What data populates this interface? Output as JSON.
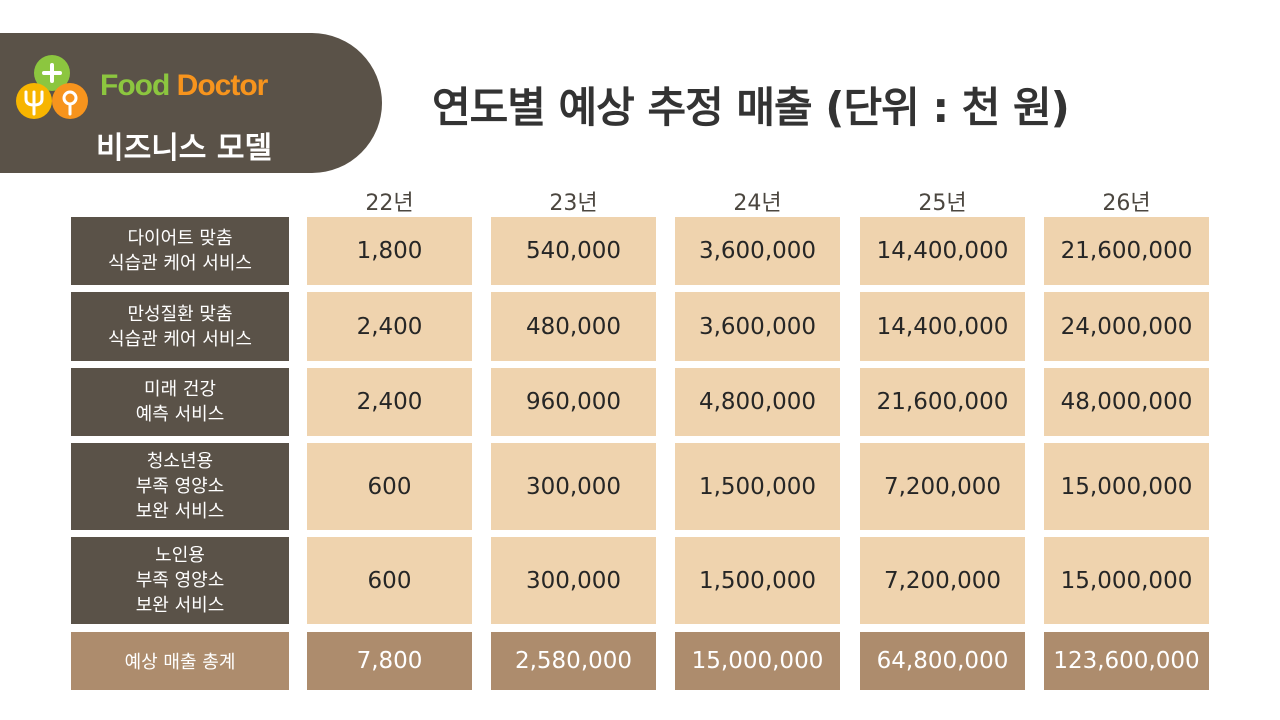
{
  "header": {
    "brand_part1": "Food",
    "brand_part2": "Doctor",
    "subtitle": "비즈니스 모델",
    "title": "연도별 예상 추정 매출 (단위 : 천 원)"
  },
  "colors": {
    "badge": "#5a5248",
    "value_cell": "#efd3ae",
    "total_cell": "#ad8c6d",
    "brand_green": "#8cc63f",
    "brand_orange": "#f7941d"
  },
  "logo_icons": [
    "plus-icon",
    "fork-icon",
    "spoon-icon"
  ],
  "table": {
    "years": [
      "22년",
      "23년",
      "24년",
      "25년",
      "26년"
    ],
    "rows": [
      {
        "label": "다이어트 맞춤\n식습관 케어 서비스",
        "values": [
          "1,800",
          "540,000",
          "3,600,000",
          "14,400,000",
          "21,600,000"
        ]
      },
      {
        "label": "만성질환 맞춤\n식습관 케어 서비스",
        "values": [
          "2,400",
          "480,000",
          "3,600,000",
          "14,400,000",
          "24,000,000"
        ]
      },
      {
        "label": "미래 건강\n예측 서비스",
        "values": [
          "2,400",
          "960,000",
          "4,800,000",
          "21,600,000",
          "48,000,000"
        ]
      },
      {
        "label": "청소년용\n부족 영양소\n보완 서비스",
        "values": [
          "600",
          "300,000",
          "1,500,000",
          "7,200,000",
          "15,000,000"
        ]
      },
      {
        "label": "노인용\n부족 영양소\n보완 서비스",
        "values": [
          "600",
          "300,000",
          "1,500,000",
          "7,200,000",
          "15,000,000"
        ]
      }
    ],
    "total": {
      "label": "예상 매출 총계",
      "values": [
        "7,800",
        "2,580,000",
        "15,000,000",
        "64,800,000",
        "123,600,000"
      ]
    }
  }
}
